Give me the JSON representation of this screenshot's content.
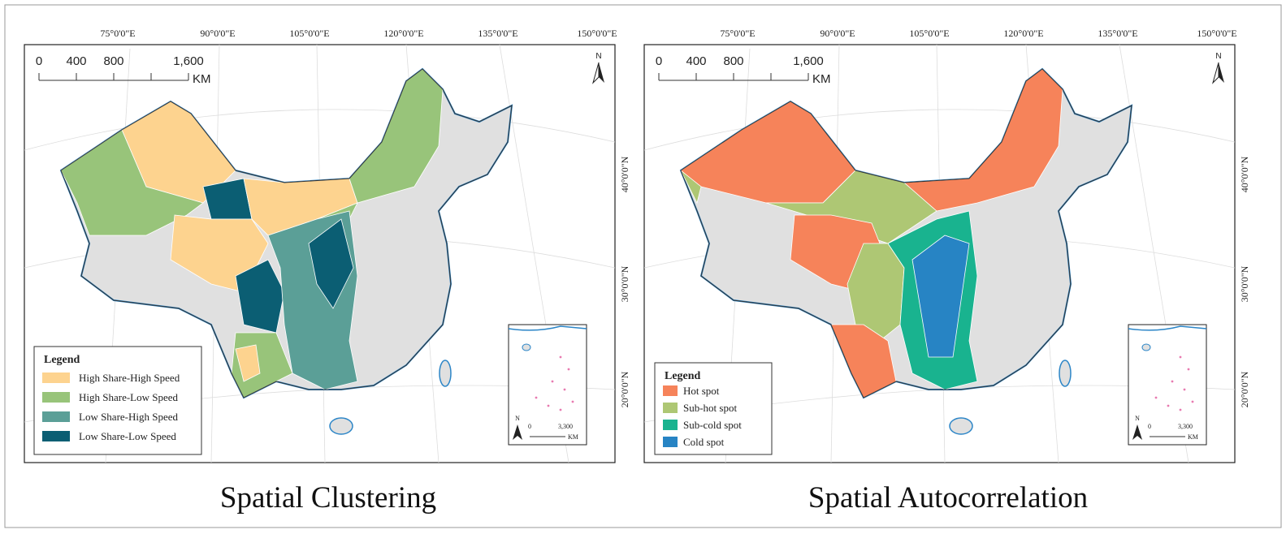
{
  "panels": [
    {
      "caption": "Spatial Clustering",
      "lon_labels": [
        "75°0'0\"E",
        "90°0'0\"E",
        "105°0'0\"E",
        "120°0'0\"E",
        "135°0'0\"E",
        "150°0'0\"E"
      ],
      "lat_labels": [
        "40°0'0\"N",
        "30°0'0\"N",
        "20°0'0\"N"
      ],
      "scale": {
        "ticks": [
          "0",
          "400",
          "800",
          "1,600"
        ],
        "unit": "KM"
      },
      "north": "N",
      "inset": {
        "north": "N",
        "ticks": [
          "0",
          "3,300"
        ],
        "unit": "KM"
      },
      "legend": {
        "title": "Legend",
        "items": [
          {
            "label": "High Share-High Speed",
            "color": "#fdd38f"
          },
          {
            "label": "High Share-Low Speed",
            "color": "#98c47a"
          },
          {
            "label": "Low Share-High Speed",
            "color": "#5b9f97"
          },
          {
            "label": "Low Share-Low Speed",
            "color": "#0b5e73"
          }
        ]
      }
    },
    {
      "caption": "Spatial Autocorrelation",
      "lon_labels": [
        "75°0'0\"E",
        "90°0'0\"E",
        "105°0'0\"E",
        "120°0'0\"E",
        "135°0'0\"E",
        "150°0'0\"E"
      ],
      "lat_labels": [
        "40°0'0\"N",
        "30°0'0\"N",
        "20°0'0\"N"
      ],
      "scale": {
        "ticks": [
          "0",
          "400",
          "800",
          "1,600"
        ],
        "unit": "KM"
      },
      "north": "N",
      "inset": {
        "north": "N",
        "ticks": [
          "0",
          "3,300"
        ],
        "unit": "KM"
      },
      "legend": {
        "title": "Legend",
        "items": [
          {
            "label": "Hot spot",
            "color": "#f6835a"
          },
          {
            "label": "Sub-hot spot",
            "color": "#aec774"
          },
          {
            "label": "Sub-cold spot",
            "color": "#19b38f"
          },
          {
            "label": "Cold spot",
            "color": "#2784c4"
          }
        ]
      }
    }
  ]
}
